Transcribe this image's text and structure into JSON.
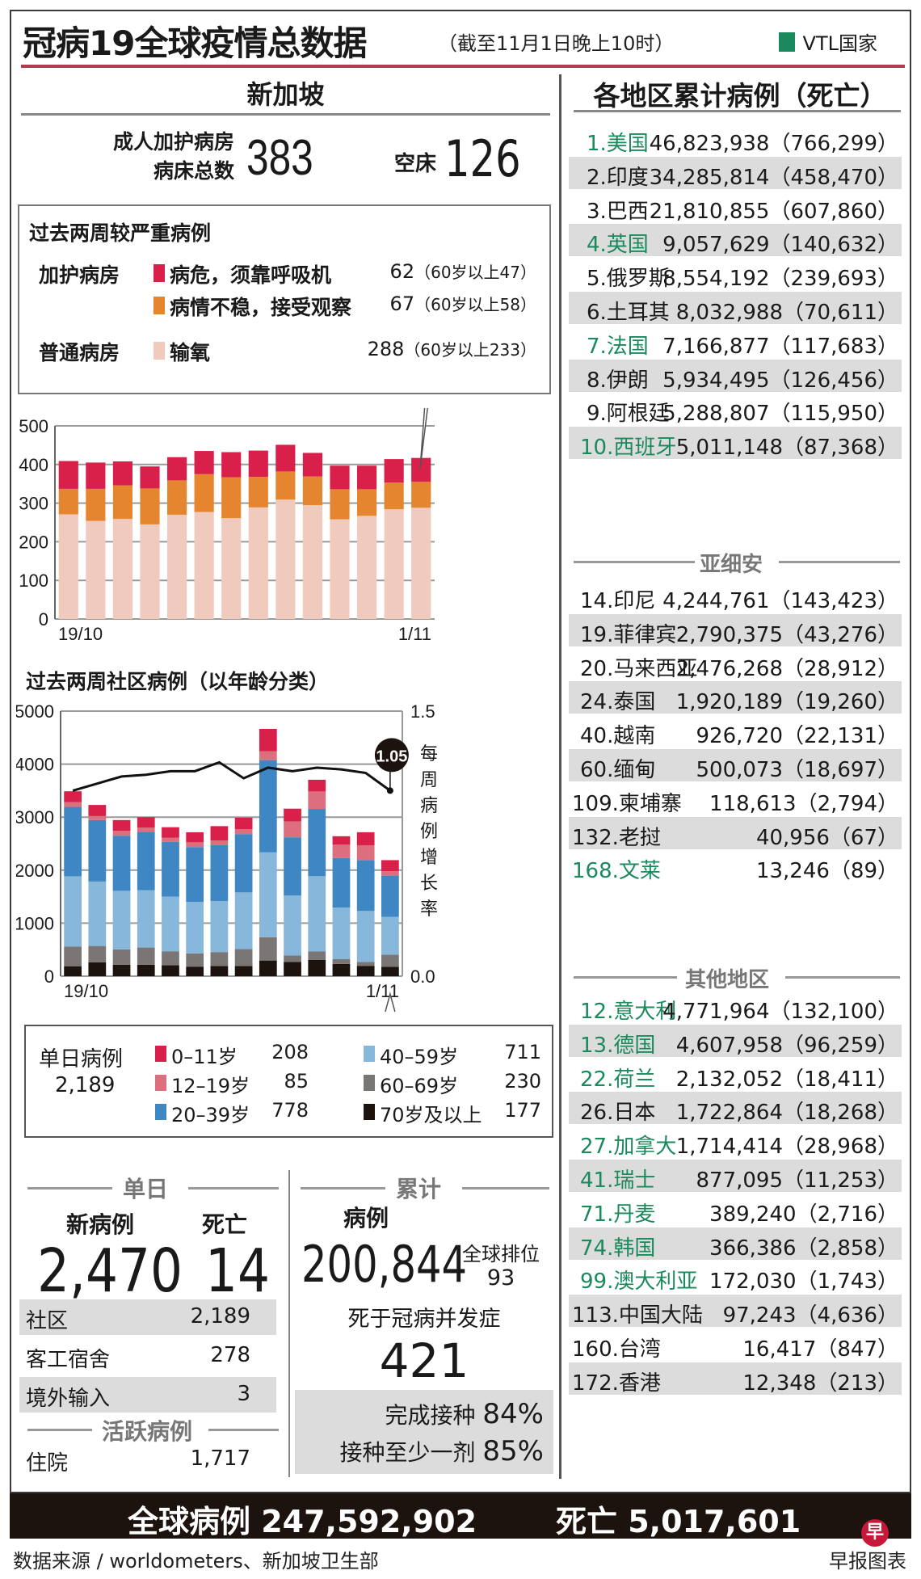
{
  "header": {
    "title": "冠病19全球疫情总数据",
    "subtitle": "（截至11月1日晚上10时）",
    "legend_vtl": "VTL国家",
    "vtl_color": "#1a8a5c"
  },
  "singapore": {
    "heading": "新加坡",
    "icu_beds_label_line1": "成人加护病房",
    "icu_beds_label_line2": "病床总数",
    "icu_beds_total": "383",
    "empty_beds_label": "空床",
    "empty_beds": "126",
    "severe": {
      "title": "过去两周较严重病例",
      "rows": [
        {
          "ward": "加护病房",
          "label": "病危，须靠呼吸机",
          "count": "62",
          "detail": "（60岁以上47）",
          "color": "#d9204a"
        },
        {
          "ward": "",
          "label": "病情不稳，接受观察",
          "count": "67",
          "detail": "（60岁以上58）",
          "color": "#e6852f"
        },
        {
          "ward": "普通病房",
          "label": "输氧",
          "count": "288",
          "detail": "（60岁以上233）",
          "color": "#f0cbbd"
        }
      ]
    },
    "community_title": "过去两周社区病例（以年龄分类）",
    "legend": {
      "total_label": "单日病例",
      "total": "2,189",
      "items": [
        {
          "label": "0–11岁",
          "value": "208",
          "color": "#d9204a"
        },
        {
          "label": "12–19岁",
          "value": "85",
          "color": "#dc6e7e"
        },
        {
          "label": "20–39岁",
          "value": "778",
          "color": "#3f87c2"
        },
        {
          "label": "40–59岁",
          "value": "711",
          "color": "#88b7dc"
        },
        {
          "label": "60–69岁",
          "value": "230",
          "color": "#7a7676"
        },
        {
          "label": "70岁及以上",
          "value": "177",
          "color": "#1c120e"
        }
      ]
    },
    "daily": {
      "header": "单日",
      "new_cases_label": "新病例",
      "deaths_label": "死亡",
      "new_cases": "2,470",
      "deaths": "14",
      "rows": [
        {
          "label": "社区",
          "value": "2,189"
        },
        {
          "label": "客工宿舍",
          "value": "278"
        },
        {
          "label": "境外输入",
          "value": "3"
        }
      ],
      "active_header": "活跃病例",
      "hospitalised_label": "住院",
      "hospitalised": "1,717"
    },
    "cumulative": {
      "header": "累计",
      "cases_label": "病例",
      "cases": "200,844",
      "rank_label": "全球排位",
      "rank": "93",
      "deaths_label": "死于冠病并发症",
      "deaths": "421",
      "vax_full_label": "完成接种",
      "vax_full": "84%",
      "vax_one_label": "接种至少一剂",
      "vax_one": "85%"
    }
  },
  "regions": {
    "heading": "各地区累计病例（死亡）",
    "top": [
      {
        "name": "1.美国",
        "value": "46,823,938（766,299）",
        "vtl": true
      },
      {
        "name": "2.印度",
        "value": "34,285,814（458,470）",
        "vtl": false
      },
      {
        "name": "3.巴西",
        "value": "21,810,855（607,860）",
        "vtl": false
      },
      {
        "name": "4.英国",
        "value": "9,057,629（140,632）",
        "vtl": true
      },
      {
        "name": "5.俄罗斯",
        "value": "8,554,192（239,693）",
        "vtl": false
      },
      {
        "name": "6.土耳其",
        "value": "8,032,988（70,611）",
        "vtl": false
      },
      {
        "name": "7.法国",
        "value": "7,166,877（117,683）",
        "vtl": true
      },
      {
        "name": "8.伊朗",
        "value": "5,934,495（126,456）",
        "vtl": false
      },
      {
        "name": "9.阿根廷",
        "value": "5,288,807（115,950）",
        "vtl": false
      },
      {
        "name": "10.西班牙",
        "value": "5,011,148（87,368）",
        "vtl": true
      }
    ],
    "asean_heading": "亚细安",
    "asean": [
      {
        "name": "14.印尼",
        "value": "4,244,761（143,423）",
        "vtl": false
      },
      {
        "name": "19.菲律宾",
        "value": "2,790,375（43,276）",
        "vtl": false
      },
      {
        "name": "20.马来西亚",
        "value": "2,476,268（28,912）",
        "vtl": false
      },
      {
        "name": "24.泰国",
        "value": "1,920,189（19,260）",
        "vtl": false
      },
      {
        "name": "40.越南",
        "value": "926,720（22,131）",
        "vtl": false
      },
      {
        "name": "60.缅甸",
        "value": "500,073（18,697）",
        "vtl": false
      },
      {
        "name": "109.柬埔寨",
        "value": "118,613（2,794）",
        "vtl": false
      },
      {
        "name": "132.老挝",
        "value": "40,956（67）",
        "vtl": false
      },
      {
        "name": "168.文莱",
        "value": "13,246（89）",
        "vtl": true
      }
    ],
    "other_heading": "其他地区",
    "other": [
      {
        "name": "12.意大利",
        "value": "4,771,964（132,100）",
        "vtl": true
      },
      {
        "name": "13.德国",
        "value": "4,607,958（96,259）",
        "vtl": true
      },
      {
        "name": "22.荷兰",
        "value": "2,132,052（18,411）",
        "vtl": true
      },
      {
        "name": "26.日本",
        "value": "1,722,864（18,268）",
        "vtl": false
      },
      {
        "name": "27.加拿大",
        "value": "1,714,414（28,968）",
        "vtl": true
      },
      {
        "name": "41.瑞士",
        "value": "877,095（11,253）",
        "vtl": true
      },
      {
        "name": "71.丹麦",
        "value": "389,240（2,716）",
        "vtl": true
      },
      {
        "name": "74.韩国",
        "value": "366,386（2,858）",
        "vtl": true
      },
      {
        "name": "99.澳大利亚",
        "value": "172,030（1,743）",
        "vtl": true
      },
      {
        "name": "113.中国大陆",
        "value": "97,243（4,636）",
        "vtl": false
      },
      {
        "name": "160.台湾",
        "value": "16,417（847）",
        "vtl": false
      },
      {
        "name": "172.香港",
        "value": "12,348（213）",
        "vtl": false
      }
    ]
  },
  "global": {
    "cases_text": "全球病例 247,592,902",
    "deaths_text": "死亡 5,017,601"
  },
  "footer": {
    "source": "数据来源 / worldometers、新加坡卫生部",
    "brand": "早报图表",
    "logo_char": "早"
  },
  "chart_data": [
    {
      "type": "bar",
      "stacked": true,
      "title": "过去两周较严重病例",
      "categories": [
        "19/10",
        "20/10",
        "21/10",
        "22/10",
        "23/10",
        "24/10",
        "25/10",
        "26/10",
        "27/10",
        "28/10",
        "29/10",
        "30/10",
        "31/10",
        "1/11"
      ],
      "x_tick_labels": [
        "19/10",
        "1/11"
      ],
      "ylim": [
        0,
        500
      ],
      "yticks": [
        0,
        100,
        200,
        300,
        400,
        500
      ],
      "grid": true,
      "series": [
        {
          "name": "输氧",
          "color": "#f0cbbd",
          "values": [
            271,
            254,
            259,
            245,
            270,
            277,
            261,
            289,
            309,
            295,
            258,
            267,
            284,
            288
          ]
        },
        {
          "name": "病情不稳，接受观察",
          "color": "#e6852f",
          "values": [
            66,
            83,
            87,
            93,
            89,
            98,
            106,
            79,
            73,
            74,
            78,
            69,
            69,
            67
          ]
        },
        {
          "name": "病危，须靠呼吸机",
          "color": "#d9204a",
          "values": [
            72,
            68,
            62,
            57,
            60,
            60,
            65,
            68,
            69,
            61,
            61,
            61,
            61,
            62
          ]
        }
      ]
    },
    {
      "type": "bar",
      "stacked": true,
      "title": "过去两周社区病例（以年龄分类）",
      "categories": [
        "19/10",
        "20/10",
        "21/10",
        "22/10",
        "23/10",
        "24/10",
        "25/10",
        "26/10",
        "27/10",
        "28/10",
        "29/10",
        "30/10",
        "31/10",
        "1/11"
      ],
      "x_tick_labels": [
        "19/10",
        "1/11"
      ],
      "ylim": [
        0,
        5000
      ],
      "yticks": [
        0,
        1000,
        2000,
        3000,
        4000,
        5000
      ],
      "y2lim": [
        0.0,
        1.5
      ],
      "y2ticks": [
        0.0,
        1.5
      ],
      "y2label": "每周病例增长率",
      "grid": true,
      "series": [
        {
          "name": "70岁及以上",
          "color": "#1c120e",
          "values": [
            188,
            260,
            215,
            215,
            205,
            180,
            190,
            190,
            295,
            270,
            305,
            230,
            195,
            177
          ]
        },
        {
          "name": "60–69岁",
          "color": "#7a7676",
          "values": [
            372,
            310,
            290,
            325,
            265,
            250,
            265,
            320,
            440,
            120,
            160,
            90,
            75,
            230
          ]
        },
        {
          "name": "40–59岁",
          "color": "#88b7dc",
          "values": [
            1324,
            1215,
            1105,
            1080,
            1030,
            970,
            960,
            1070,
            1600,
            1130,
            1420,
            975,
            960,
            711
          ]
        },
        {
          "name": "20–39岁",
          "color": "#3f87c2",
          "values": [
            1309,
            1160,
            1040,
            1100,
            1035,
            1035,
            1055,
            1100,
            1740,
            1100,
            1270,
            935,
            960,
            778
          ]
        },
        {
          "name": "12–19岁",
          "color": "#dc6e7e",
          "values": [
            91,
            75,
            90,
            85,
            75,
            90,
            90,
            90,
            170,
            300,
            330,
            250,
            280,
            85
          ]
        },
        {
          "name": "0–11岁",
          "color": "#d9204a",
          "values": [
            204,
            210,
            205,
            195,
            200,
            190,
            270,
            220,
            420,
            240,
            220,
            160,
            245,
            208
          ]
        }
      ],
      "line_series": {
        "name": "每周病例增长率",
        "color": "#111111",
        "axis": "y2",
        "values": [
          1.05,
          1.09,
          1.13,
          1.14,
          1.16,
          1.16,
          1.21,
          1.12,
          1.18,
          1.16,
          1.18,
          1.17,
          1.15,
          1.05
        ],
        "end_label": "1.05"
      }
    }
  ]
}
